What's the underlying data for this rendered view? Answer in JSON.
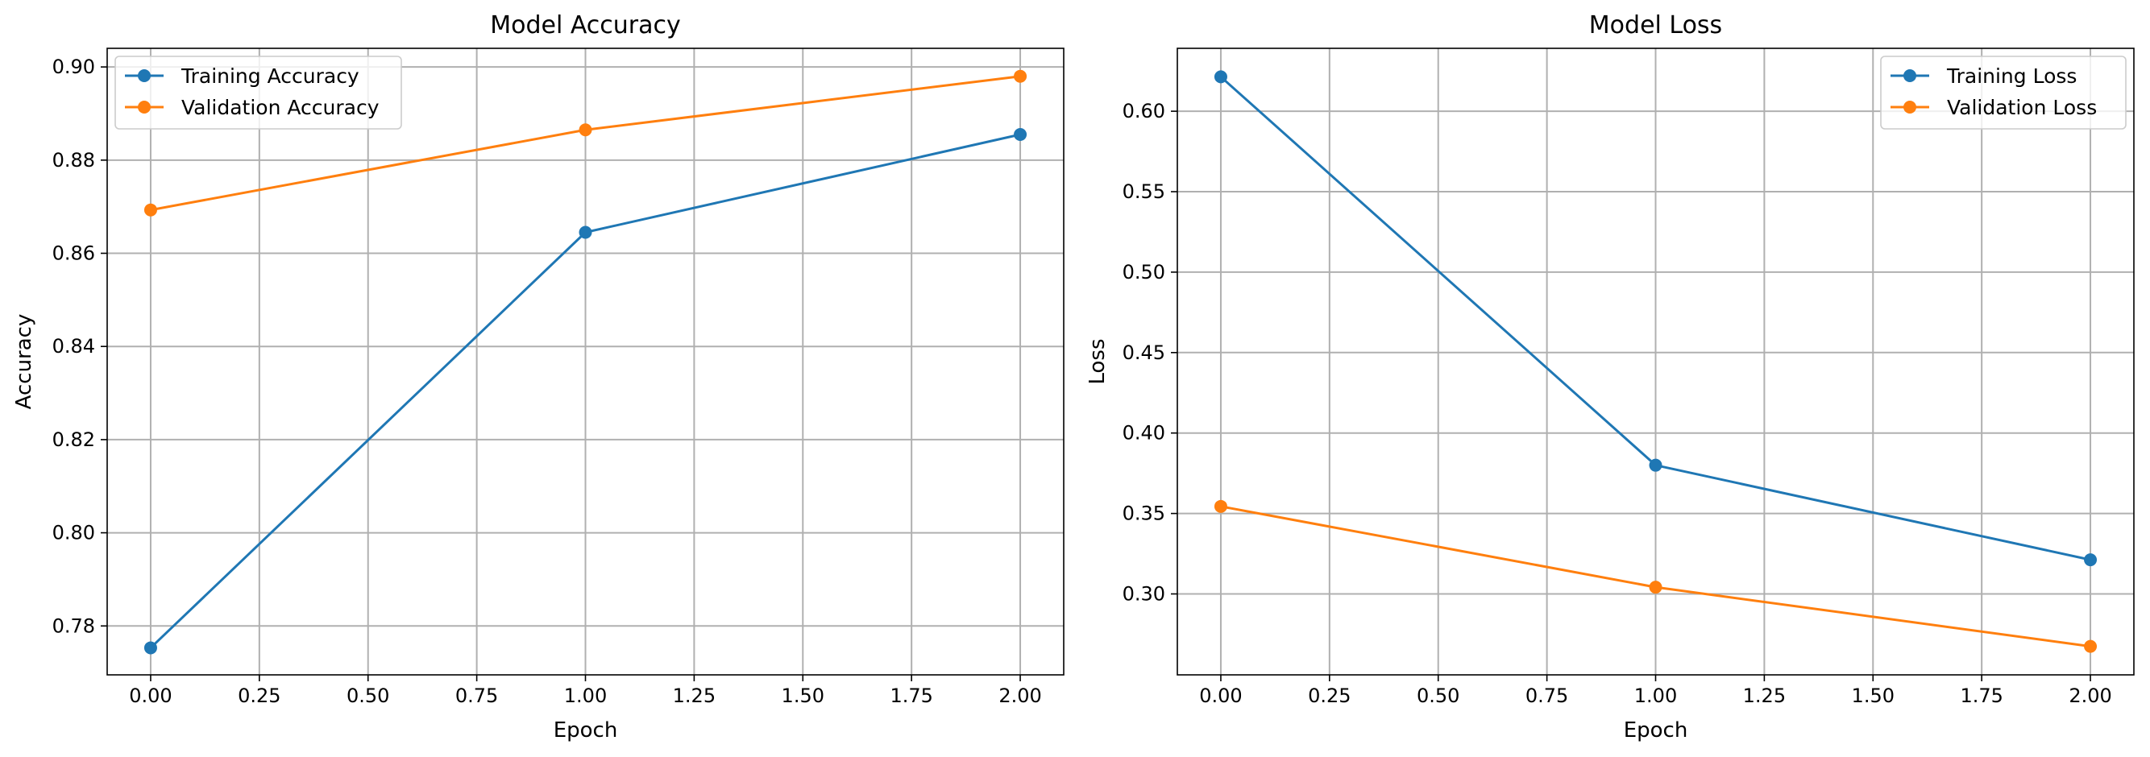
{
  "chart_data": [
    {
      "type": "line",
      "title": "Model Accuracy",
      "xlabel": "Epoch",
      "ylabel": "Accuracy",
      "x": [
        0,
        1,
        2
      ],
      "xlim": [
        -0.1,
        2.1
      ],
      "ylim": [
        0.7695,
        0.904
      ],
      "xticks": [
        0.0,
        0.25,
        0.5,
        0.75,
        1.0,
        1.25,
        1.5,
        1.75,
        2.0
      ],
      "xtick_labels": [
        "0.00",
        "0.25",
        "0.50",
        "0.75",
        "1.00",
        "1.25",
        "1.50",
        "1.75",
        "2.00"
      ],
      "yticks": [
        0.78,
        0.8,
        0.82,
        0.84,
        0.86,
        0.88,
        0.9
      ],
      "ytick_labels": [
        "0.78",
        "0.80",
        "0.82",
        "0.84",
        "0.86",
        "0.88",
        "0.90"
      ],
      "grid": true,
      "legend_position": "top-left",
      "series": [
        {
          "name": "Training Accuracy",
          "color": "#1f77b4",
          "marker": "circle",
          "values": [
            0.7753,
            0.8645,
            0.8855
          ]
        },
        {
          "name": "Validation Accuracy",
          "color": "#ff7f0e",
          "marker": "circle",
          "values": [
            0.8693,
            0.8865,
            0.898
          ]
        }
      ]
    },
    {
      "type": "line",
      "title": "Model Loss",
      "xlabel": "Epoch",
      "ylabel": "Loss",
      "x": [
        0,
        1,
        2
      ],
      "xlim": [
        -0.1,
        2.1
      ],
      "ylim": [
        0.2497,
        0.6391
      ],
      "xticks": [
        0.0,
        0.25,
        0.5,
        0.75,
        1.0,
        1.25,
        1.5,
        1.75,
        2.0
      ],
      "xtick_labels": [
        "0.00",
        "0.25",
        "0.50",
        "0.75",
        "1.00",
        "1.25",
        "1.50",
        "1.75",
        "2.00"
      ],
      "yticks": [
        0.3,
        0.35,
        0.4,
        0.45,
        0.5,
        0.55,
        0.6
      ],
      "ytick_labels": [
        "0.30",
        "0.35",
        "0.40",
        "0.45",
        "0.50",
        "0.55",
        "0.60"
      ],
      "grid": true,
      "legend_position": "top-right",
      "series": [
        {
          "name": "Training Loss",
          "color": "#1f77b4",
          "marker": "circle",
          "values": [
            0.6214,
            0.38,
            0.3212
          ]
        },
        {
          "name": "Validation Loss",
          "color": "#ff7f0e",
          "marker": "circle",
          "values": [
            0.3544,
            0.3042,
            0.2674
          ]
        }
      ]
    }
  ]
}
